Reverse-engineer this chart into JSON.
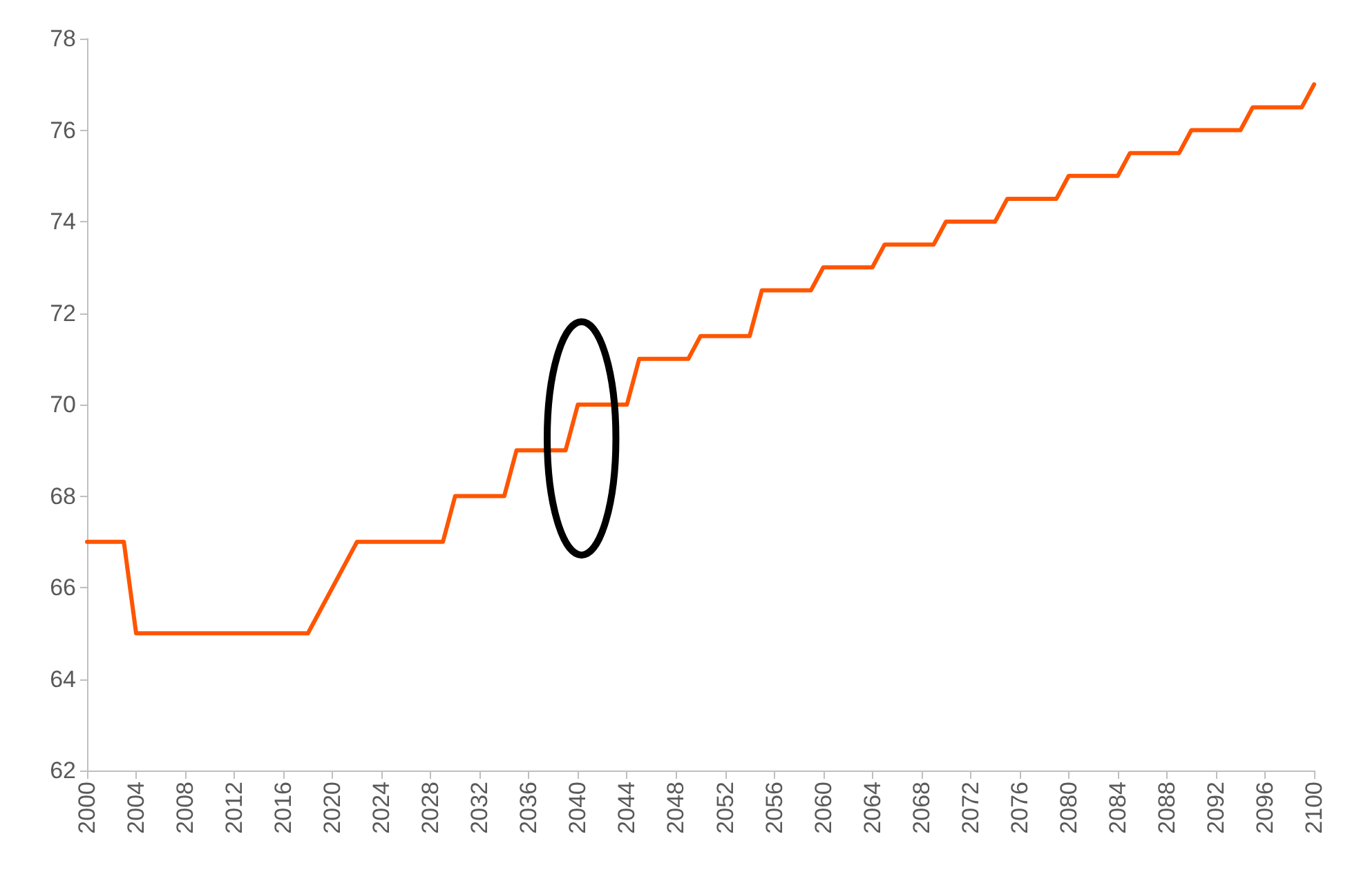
{
  "chart_data": {
    "type": "line",
    "x": [
      2000,
      2003,
      2004,
      2018,
      2022,
      2029,
      2030,
      2034,
      2035,
      2039,
      2040,
      2044,
      2045,
      2049,
      2050,
      2054,
      2055,
      2059,
      2060,
      2064,
      2065,
      2069,
      2070,
      2074,
      2075,
      2079,
      2080,
      2084,
      2085,
      2089,
      2090,
      2094,
      2095,
      2099,
      2100
    ],
    "series": [
      {
        "color": "#ff5500",
        "values": [
          67,
          67,
          65,
          65,
          67,
          67,
          68,
          68,
          69,
          69,
          70,
          70,
          71,
          71,
          71.5,
          71.5,
          72.5,
          72.5,
          73,
          73,
          73.5,
          73.5,
          74,
          74,
          74.5,
          74.5,
          75,
          75,
          75.5,
          75.5,
          76,
          76,
          76.5,
          76.5,
          77
        ]
      }
    ],
    "xlim": [
      2000,
      2100
    ],
    "xticks": [
      2000,
      2004,
      2008,
      2012,
      2016,
      2020,
      2024,
      2028,
      2032,
      2036,
      2040,
      2044,
      2048,
      2052,
      2056,
      2060,
      2064,
      2068,
      2072,
      2076,
      2080,
      2084,
      2088,
      2092,
      2096,
      2100
    ],
    "ylim": [
      62,
      78
    ],
    "yticks": [
      62,
      64,
      66,
      68,
      70,
      72,
      74,
      76,
      78
    ],
    "grid": false,
    "marker": "none",
    "line_style": "solid"
  }
}
